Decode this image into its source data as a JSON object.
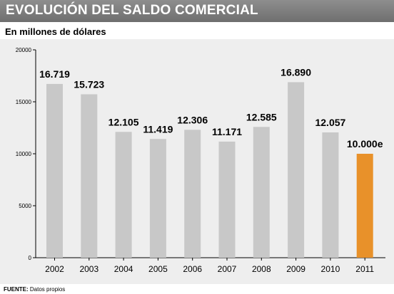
{
  "header": {
    "title": "EVOLUCIÓN DEL SALDO COMERCIAL",
    "subtitle": "En millones de dólares"
  },
  "footer": {
    "source_label": "FUENTE:",
    "source_text": "Datos propios"
  },
  "colors": {
    "bar": "#c8c8c8",
    "highlight_bar": "#e8912a",
    "panel": "#eeeeee"
  },
  "chart_data": {
    "type": "bar",
    "title": "EVOLUCIÓN DEL SALDO COMERCIAL",
    "subtitle": "En millones de dólares",
    "categories": [
      "2002",
      "2003",
      "2004",
      "2005",
      "2006",
      "2007",
      "2008",
      "2009",
      "2010",
      "2011"
    ],
    "values": [
      16719,
      15723,
      12105,
      11419,
      12306,
      11171,
      12585,
      16890,
      12057,
      10000
    ],
    "data_labels": [
      "16.719",
      "15.723",
      "12.105",
      "11.419",
      "12.306",
      "11.171",
      "12.585",
      "16.890",
      "12.057",
      "10.000e"
    ],
    "highlight_index": 9,
    "ylim": [
      0,
      20000
    ],
    "yticks": [
      0,
      5000,
      10000,
      15000,
      20000
    ],
    "ytick_labels": [
      "0",
      "5000",
      "10000",
      "15000",
      "20000"
    ],
    "xlabel": "",
    "ylabel": "",
    "grid": false,
    "legend": "none"
  }
}
